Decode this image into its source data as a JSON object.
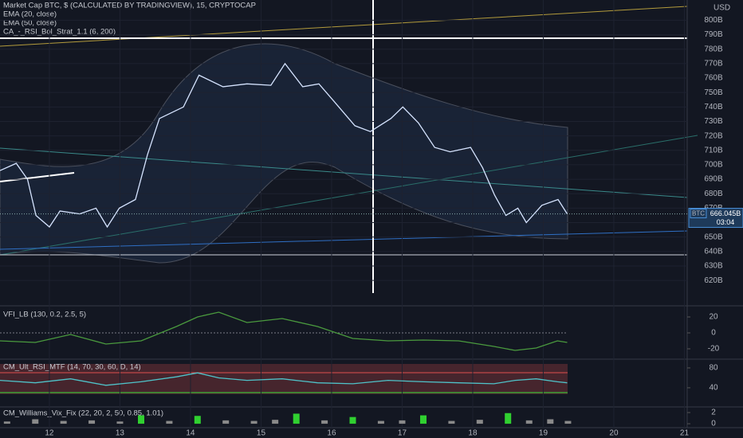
{
  "chart_data": [
    {
      "type": "line",
      "title": "Market Cap BTC, $ (CALCULATED BY TRADINGVIEW), 15, CRYPTOCAP",
      "indicators": [
        "EMA (20, close)",
        "EMA (50, close)",
        "CA_-_RSI_Bol_Strat_1.1 (6, 200)"
      ],
      "y_unit": "USD",
      "price_label": "666.045B",
      "countdown": "03:04",
      "xlim": [
        11.3,
        21.04
      ],
      "xticks": [
        12,
        13,
        14,
        15,
        16,
        17,
        18,
        19,
        20,
        21
      ],
      "ylim": [
        603,
        814
      ],
      "yticks": [
        {
          "value": 620,
          "label": "620B"
        },
        {
          "value": 630,
          "label": "630B"
        },
        {
          "value": 640,
          "label": "640B"
        },
        {
          "value": 650,
          "label": "650B"
        },
        {
          "value": 660,
          "label": "660B"
        },
        {
          "value": 670,
          "label": "670B"
        },
        {
          "value": 680,
          "label": "680B"
        },
        {
          "value": 690,
          "label": "690B"
        },
        {
          "value": 700,
          "label": "700B"
        },
        {
          "value": 710,
          "label": "710B"
        },
        {
          "value": 720,
          "label": "720B"
        },
        {
          "value": 730,
          "label": "730B"
        },
        {
          "value": 740,
          "label": "740B"
        },
        {
          "value": 750,
          "label": "750B"
        },
        {
          "value": 760,
          "label": "760B"
        },
        {
          "value": 770,
          "label": "770B"
        },
        {
          "value": 780,
          "label": "780B"
        },
        {
          "value": 790,
          "label": "790B"
        },
        {
          "value": 800,
          "label": "800B"
        }
      ],
      "grid": true,
      "x": [
        11.3,
        11.53,
        11.69,
        11.81,
        12.0,
        12.15,
        12.43,
        12.66,
        12.82,
        12.99,
        13.22,
        13.39,
        13.56,
        13.9,
        14.12,
        14.46,
        14.8,
        15.14,
        15.34,
        15.59,
        15.82,
        16.05,
        16.33,
        16.55,
        16.84,
        17.01,
        17.23,
        17.46,
        17.68,
        17.97,
        18.14,
        18.31,
        18.47,
        18.64,
        18.76,
        18.98,
        19.21,
        19.34
      ],
      "series": [
        {
          "name": "BTC",
          "color": "#d6e4ff",
          "values": [
            696,
            701,
            690,
            665,
            657,
            668,
            666,
            670,
            657,
            670,
            676,
            707,
            732,
            740,
            762,
            754,
            756,
            755,
            770,
            754,
            756,
            743,
            727,
            723,
            732,
            740,
            729,
            712,
            709,
            712,
            698,
            679,
            665,
            670,
            660,
            672,
            676,
            666.045
          ]
        }
      ]
    },
    {
      "type": "line",
      "title": "VFI_LB (130, 0.2, 2.5, 5)",
      "ylim": [
        -32,
        33
      ],
      "yticks": [
        -20,
        0,
        20
      ],
      "x": [
        11.3,
        11.8,
        12.3,
        12.8,
        13.3,
        13.8,
        14.1,
        14.4,
        14.8,
        15.3,
        15.8,
        16.3,
        16.8,
        17.3,
        17.8,
        18.3,
        18.6,
        18.9,
        19.2,
        19.34
      ],
      "series": [
        {
          "color": "#4a9a3e",
          "values": [
            -10,
            -12,
            -2,
            -14,
            -10,
            8,
            20,
            26,
            13,
            18,
            8,
            -7,
            -10,
            -9,
            -10,
            -17,
            -22,
            -19,
            -10,
            -12
          ]
        }
      ]
    },
    {
      "type": "line",
      "title": "CM_Ult_RSI_MTF (14, 70, 30, 60, D, 14)",
      "ylim": [
        3,
        96
      ],
      "yticks": [
        40,
        80
      ],
      "x": [
        11.3,
        11.8,
        12.3,
        12.8,
        13.3,
        13.8,
        14.1,
        14.4,
        14.8,
        15.3,
        15.8,
        16.3,
        16.8,
        17.3,
        17.8,
        18.3,
        18.6,
        18.9,
        19.2,
        19.34
      ],
      "series": [
        {
          "color": "#4fc3c9",
          "values": [
            55,
            50,
            58,
            45,
            52,
            62,
            70,
            60,
            55,
            58,
            50,
            48,
            55,
            52,
            50,
            48,
            55,
            58,
            52,
            50
          ]
        }
      ]
    },
    {
      "type": "bar",
      "title": "CM_Williams_Vix_Fix (22, 20, 2, 50, 0.85, 1.01)",
      "ylim": [
        -0.7,
        2.86
      ],
      "yticks": [
        0,
        2
      ],
      "x": [
        11.4,
        11.8,
        12.2,
        12.6,
        13.0,
        13.3,
        13.7,
        14.1,
        14.5,
        14.9,
        15.2,
        15.5,
        15.9,
        16.3,
        16.7,
        17.0,
        17.3,
        17.7,
        18.1,
        18.5,
        18.8,
        19.1,
        19.35
      ],
      "series": [
        {
          "color": "#8a8a8a",
          "values": [
            0.4,
            0.8,
            0.5,
            0.6,
            0.4,
            1.5,
            0.5,
            1.4,
            0.6,
            0.5,
            0.7,
            1.8,
            0.6,
            1.2,
            0.5,
            0.6,
            1.5,
            0.5,
            0.7,
            1.9,
            0.6,
            0.8,
            0.5
          ]
        }
      ]
    }
  ]
}
